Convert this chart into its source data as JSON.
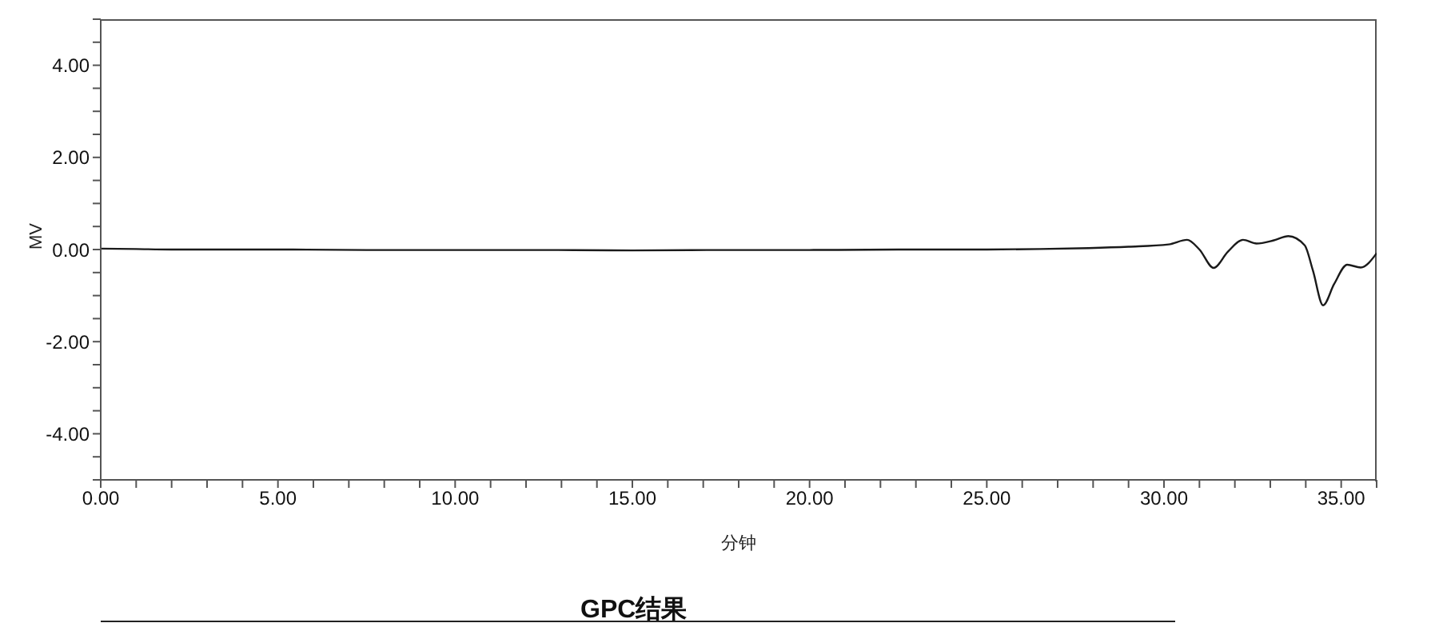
{
  "chart_data": {
    "type": "line",
    "xlabel": "分钟",
    "ylabel": "MV",
    "annotations": [
      "GPC结果"
    ],
    "x": [
      0,
      1,
      2,
      3,
      5,
      7.5,
      10,
      12.5,
      15,
      17.5,
      20,
      22.5,
      25,
      26.5,
      27.87,
      29,
      30.13,
      30.65,
      31,
      31.4,
      31.8,
      32.23,
      32.61,
      33.1,
      33.51,
      33.97,
      34.2,
      34.49,
      34.8,
      35.17,
      35.55,
      36
    ],
    "series": [
      {
        "color": "#1a1a1a",
        "values": [
          0.02,
          0.01,
          0.0,
          0.0,
          0.0,
          -0.01,
          -0.01,
          -0.01,
          -0.02,
          -0.01,
          -0.01,
          0.0,
          0.0,
          0.01,
          0.03,
          0.06,
          0.11,
          0.21,
          0.0,
          -0.4,
          -0.05,
          0.21,
          0.13,
          0.2,
          0.29,
          0.09,
          -0.45,
          -1.21,
          -0.75,
          -0.33,
          -0.39,
          -0.08
        ]
      }
    ],
    "xlim": [
      0,
      36
    ],
    "ylim": [
      -5,
      5
    ],
    "xticks": [
      {
        "value": 0,
        "label": "0.00"
      },
      {
        "value": 1,
        "label": null
      },
      {
        "value": 2,
        "label": null
      },
      {
        "value": 3,
        "label": null
      },
      {
        "value": 4,
        "label": null
      },
      {
        "value": 5,
        "label": "5.00"
      },
      {
        "value": 6,
        "label": null
      },
      {
        "value": 7,
        "label": null
      },
      {
        "value": 8,
        "label": null
      },
      {
        "value": 9,
        "label": null
      },
      {
        "value": 10,
        "label": "10.00"
      },
      {
        "value": 11,
        "label": null
      },
      {
        "value": 12,
        "label": null
      },
      {
        "value": 13,
        "label": null
      },
      {
        "value": 14,
        "label": null
      },
      {
        "value": 15,
        "label": "15.00"
      },
      {
        "value": 16,
        "label": null
      },
      {
        "value": 17,
        "label": null
      },
      {
        "value": 18,
        "label": null
      },
      {
        "value": 19,
        "label": null
      },
      {
        "value": 20,
        "label": "20.00"
      },
      {
        "value": 21,
        "label": null
      },
      {
        "value": 22,
        "label": null
      },
      {
        "value": 23,
        "label": null
      },
      {
        "value": 24,
        "label": null
      },
      {
        "value": 25,
        "label": "25.00"
      },
      {
        "value": 26,
        "label": null
      },
      {
        "value": 27,
        "label": null
      },
      {
        "value": 28,
        "label": null
      },
      {
        "value": 29,
        "label": null
      },
      {
        "value": 30,
        "label": "30.00"
      },
      {
        "value": 31,
        "label": null
      },
      {
        "value": 32,
        "label": null
      },
      {
        "value": 33,
        "label": null
      },
      {
        "value": 34,
        "label": null
      },
      {
        "value": 35,
        "label": "35.00"
      },
      {
        "value": 36,
        "label": null
      }
    ],
    "yticks": [
      {
        "value": -5,
        "label": null
      },
      {
        "value": -4.5,
        "label": null
      },
      {
        "value": -4,
        "label": "-4.00"
      },
      {
        "value": -3.5,
        "label": null
      },
      {
        "value": -3,
        "label": null
      },
      {
        "value": -2.5,
        "label": null
      },
      {
        "value": -2,
        "label": "-2.00"
      },
      {
        "value": -1.5,
        "label": null
      },
      {
        "value": -1,
        "label": null
      },
      {
        "value": -0.5,
        "label": null
      },
      {
        "value": 0,
        "label": "0.00"
      },
      {
        "value": 0.5,
        "label": null
      },
      {
        "value": 1,
        "label": null
      },
      {
        "value": 1.5,
        "label": null
      },
      {
        "value": 2,
        "label": "2.00"
      },
      {
        "value": 2.5,
        "label": null
      },
      {
        "value": 3,
        "label": null
      },
      {
        "value": 3.5,
        "label": null
      },
      {
        "value": 4,
        "label": "4.00"
      },
      {
        "value": 4.5,
        "label": null
      },
      {
        "value": 5,
        "label": null
      }
    ],
    "grid": false,
    "legend": false,
    "marker": "none",
    "line_style": "solid"
  }
}
